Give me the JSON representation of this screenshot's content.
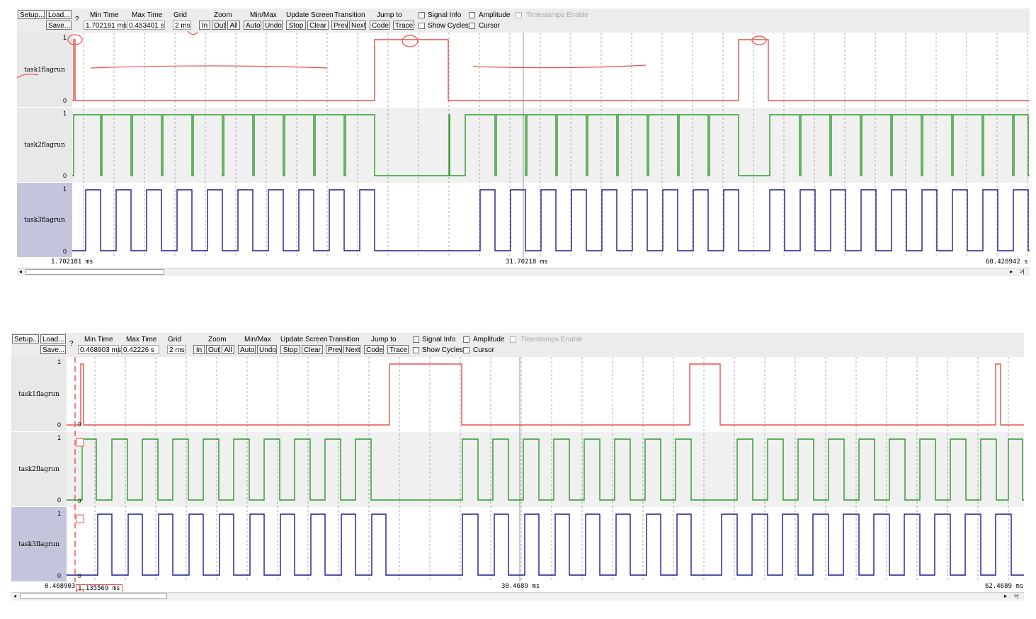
{
  "toolbar_common": {
    "setup": "Setup...",
    "load": "Load...",
    "save": "Save...",
    "help": "?",
    "min_time_label": "Min Time",
    "max_time_label": "Max Time",
    "grid_label": "Grid",
    "zoom_label": "Zoom",
    "zoom_in": "In",
    "zoom_out": "Out",
    "zoom_all": "All",
    "minmax_label": "Min/Max",
    "minmax_auto": "Auto",
    "minmax_undo": "Undo",
    "update_label": "Update Screen",
    "update_stop": "Stop",
    "update_clear": "Clear",
    "transition_label": "Transition",
    "transition_prev": "Prev",
    "transition_next": "Next",
    "jump_label": "Jump to",
    "jump_code": "Code",
    "jump_trace": "Trace",
    "signal_info": "Signal Info",
    "show_cycles": "Show Cycles",
    "amplitude": "Amplitude",
    "cursor": "Cursor",
    "timestamps": "Timestamps Enable"
  },
  "signals": [
    "task1flagrun",
    "task2flagrun",
    "task3flagrun"
  ],
  "colors": {
    "task1": "#e8504a",
    "task2": "#2a9a2a",
    "task3": "#1c1c8c",
    "annotation": "#e8504a"
  },
  "panel_top": {
    "min_time": "1.702181 ms",
    "max_time": "0.453401 s",
    "grid": "2 ms",
    "t_left": "1.702181 ms",
    "t_mid": "31.70218 ms",
    "t_right": "60.428942 s",
    "y_high": "1",
    "y_low": "0"
  },
  "panel_bottom": {
    "min_time": "0.468903 ms",
    "max_time": "0.42226 s",
    "grid": "2 ms",
    "t_left": "0.468903",
    "t_cursor": "1.135569 ms",
    "t_mid": "30.4689 ms",
    "t_right": "62.4689 ms",
    "y_high": "1",
    "y_low": "0",
    "marker": "0"
  },
  "scroll": {
    "left_arrow": "◂",
    "right_arrow": "▸",
    "end": ">|"
  }
}
